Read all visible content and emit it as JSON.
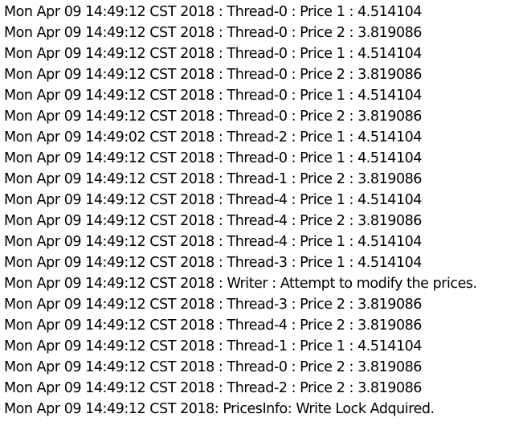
{
  "console": {
    "lines": [
      "Mon Apr 09 14:49:12 CST 2018 : Thread-0 : Price 1 : 4.514104",
      "Mon Apr 09 14:49:12 CST 2018 : Thread-0 : Price 2 : 3.819086",
      "Mon Apr 09 14:49:12 CST 2018 : Thread-0 : Price 1 : 4.514104",
      "Mon Apr 09 14:49:12 CST 2018 : Thread-0 : Price 2 : 3.819086",
      "Mon Apr 09 14:49:12 CST 2018 : Thread-0 : Price 1 : 4.514104",
      "Mon Apr 09 14:49:12 CST 2018 : Thread-0 : Price 2 : 3.819086",
      "Mon Apr 09 14:49:02 CST 2018 : Thread-2 : Price 1 : 4.514104",
      "Mon Apr 09 14:49:12 CST 2018 : Thread-0 : Price 1 : 4.514104",
      "Mon Apr 09 14:49:12 CST 2018 : Thread-1 : Price 2 : 3.819086",
      "Mon Apr 09 14:49:12 CST 2018 : Thread-4 : Price 1 : 4.514104",
      "Mon Apr 09 14:49:12 CST 2018 : Thread-4 : Price 2 : 3.819086",
      "Mon Apr 09 14:49:12 CST 2018 : Thread-4 : Price 1 : 4.514104",
      "Mon Apr 09 14:49:12 CST 2018 : Thread-3 : Price 1 : 4.514104",
      "Mon Apr 09 14:49:12 CST 2018 : Writer : Attempt to modify the prices.",
      "Mon Apr 09 14:49:12 CST 2018 : Thread-3 : Price 2 : 3.819086",
      "Mon Apr 09 14:49:12 CST 2018 : Thread-4 : Price 2 : 3.819086",
      "Mon Apr 09 14:49:12 CST 2018 : Thread-1 : Price 1 : 4.514104",
      "Mon Apr 09 14:49:12 CST 2018 : Thread-0 : Price 2 : 3.819086",
      "Mon Apr 09 14:49:12 CST 2018 : Thread-2 : Price 2 : 3.819086",
      "Mon Apr 09 14:49:12 CST 2018: PricesInfo: Write Lock Adquired."
    ]
  }
}
